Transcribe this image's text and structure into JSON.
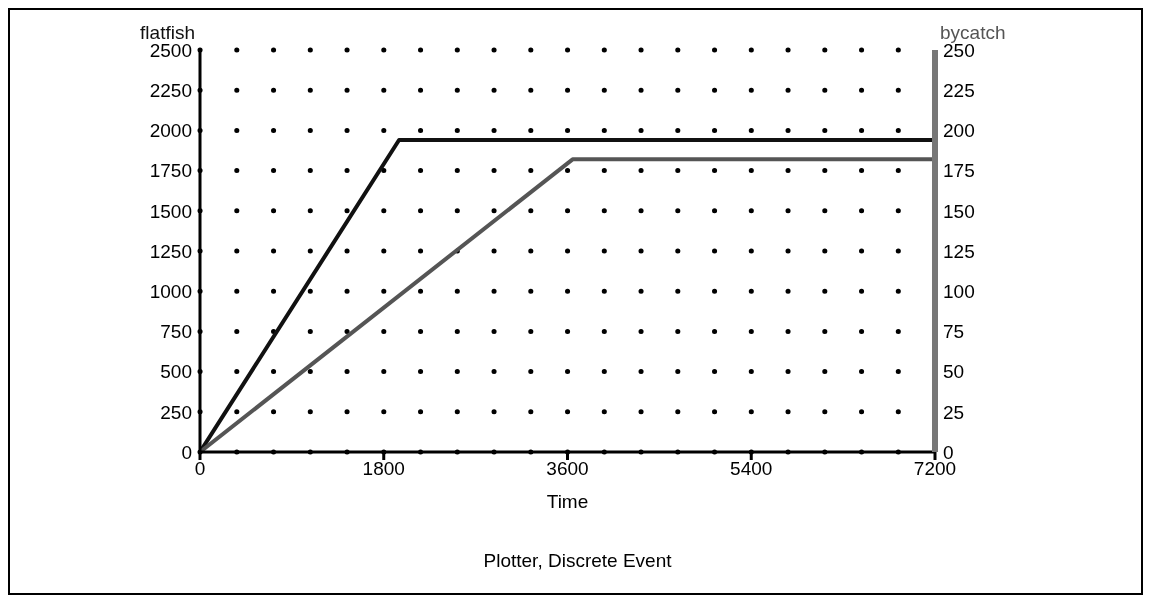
{
  "chart_data": {
    "type": "line",
    "xlabel": "Time",
    "annotations": [
      "Plotter, Discrete Event"
    ],
    "series": [
      {
        "name": "flatfish",
        "color": "#111111",
        "x": [
          0,
          1950,
          7200
        ],
        "values": [
          0,
          1940,
          1940
        ]
      },
      {
        "name": "bycatch",
        "color": "#555555",
        "axis": "y2",
        "x": [
          0,
          3650,
          7200
        ],
        "values": [
          0,
          182,
          182
        ]
      }
    ],
    "xlim": [
      0,
      7200
    ],
    "xticks": [
      0,
      1800,
      3600,
      5400,
      7200
    ],
    "ylim": [
      0,
      2500
    ],
    "yticks": [
      0,
      250,
      500,
      750,
      1000,
      1250,
      1500,
      1750,
      2000,
      2250,
      2500
    ],
    "y2lim": [
      0,
      250
    ],
    "y2ticks": [
      0,
      25,
      50,
      75,
      100,
      125,
      150,
      175,
      200,
      225,
      250
    ],
    "grid": "y",
    "marker": "none",
    "line_style": "solid"
  }
}
